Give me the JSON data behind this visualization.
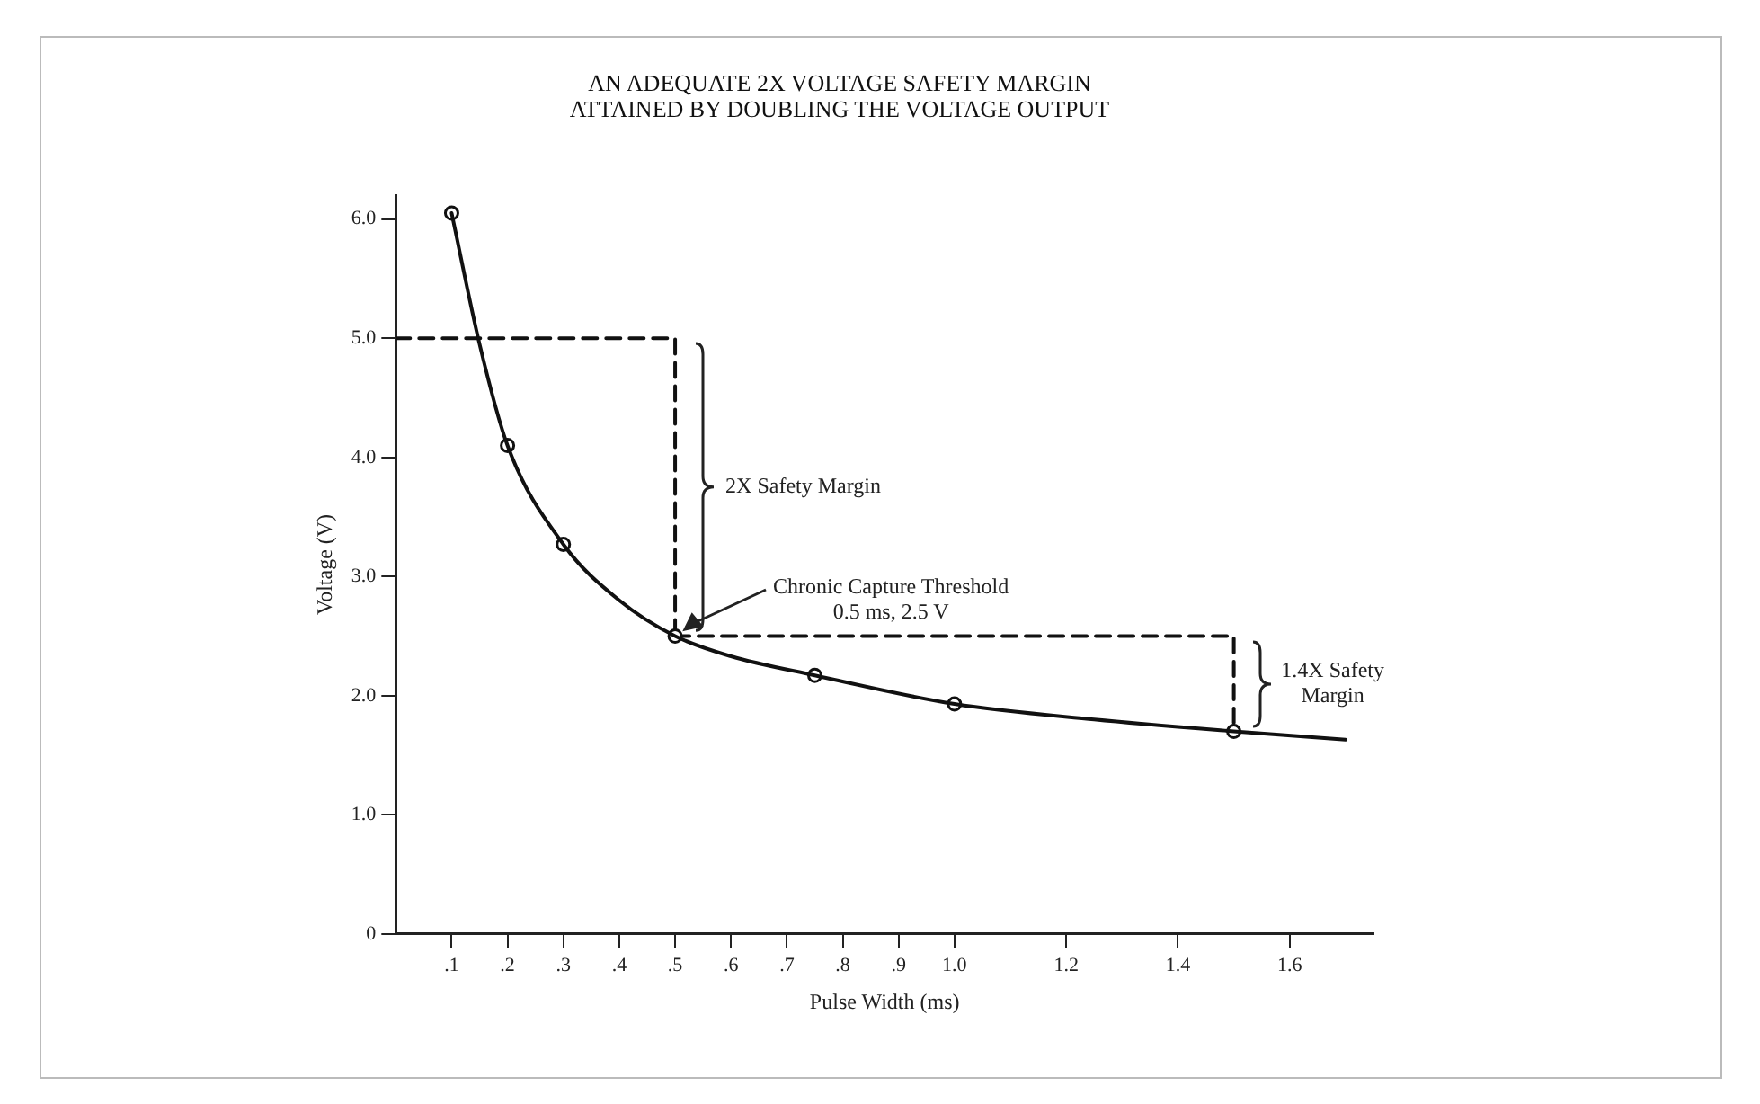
{
  "chart_data": {
    "type": "line",
    "title": "AN ADEQUATE 2X VOLTAGE SAFETY MARGIN\nATTAINED BY DOUBLING THE VOLTAGE OUTPUT",
    "xlabel": "Pulse Width (ms)",
    "ylabel": "Voltage (V)",
    "xlim": [
      0,
      1.75
    ],
    "xticks": [
      {
        "value": 0.1,
        "label": ".1"
      },
      {
        "value": 0.2,
        "label": ".2"
      },
      {
        "value": 0.3,
        "label": ".3"
      },
      {
        "value": 0.4,
        "label": ".4"
      },
      {
        "value": 0.5,
        "label": ".5"
      },
      {
        "value": 0.6,
        "label": ".6"
      },
      {
        "value": 0.7,
        "label": ".7"
      },
      {
        "value": 0.8,
        "label": ".8"
      },
      {
        "value": 0.9,
        "label": ".9"
      },
      {
        "value": 1.0,
        "label": "1.0"
      },
      {
        "value": 1.2,
        "label": "1.2"
      },
      {
        "value": 1.4,
        "label": "1.4"
      },
      {
        "value": 1.6,
        "label": "1.6"
      }
    ],
    "ylim": [
      0,
      6.2
    ],
    "yticks": [
      0,
      {
        "value": 1,
        "label": "1.0"
      },
      {
        "value": 2,
        "label": "2.0"
      },
      {
        "value": 3,
        "label": "3.0"
      },
      {
        "value": 4,
        "label": "4.0"
      },
      {
        "value": 5,
        "label": "5.0"
      },
      {
        "value": 6,
        "label": "6.0"
      }
    ],
    "grid": false,
    "legend": false,
    "series": [
      {
        "type": "line",
        "color": "#111111",
        "marker": "none",
        "line_style": "solid",
        "x": [
          0.1,
          0.15,
          0.2,
          0.3,
          0.4,
          0.5,
          0.6,
          0.75,
          1.0,
          1.25,
          1.5,
          1.7
        ],
        "values": [
          6.05,
          4.95,
          4.1,
          3.27,
          2.8,
          2.5,
          2.33,
          2.17,
          1.93,
          1.8,
          1.7,
          1.63
        ]
      },
      {
        "type": "scatter",
        "color": "#111111",
        "marker": "circle",
        "x": [
          0.1,
          0.2,
          0.3,
          0.5,
          0.75,
          1.0,
          1.5
        ],
        "values": [
          6.05,
          4.1,
          3.27,
          2.5,
          2.17,
          1.93,
          1.7
        ]
      },
      {
        "type": "line",
        "color": "#111111",
        "marker": "none",
        "line_style": "dashed",
        "x": [
          0,
          0.5,
          0.5
        ],
        "values": [
          5.0,
          5.0,
          2.5
        ]
      },
      {
        "type": "line",
        "color": "#111111",
        "marker": "none",
        "line_style": "dashed",
        "x": [
          0.5,
          1.5,
          1.5
        ],
        "values": [
          2.5,
          2.5,
          1.7
        ]
      }
    ],
    "annotations": [
      "2X Safety Margin",
      "Chronic Capture Threshold\n0.5 ms, 2.5 V",
      "1.4X Safety\nMargin"
    ]
  }
}
